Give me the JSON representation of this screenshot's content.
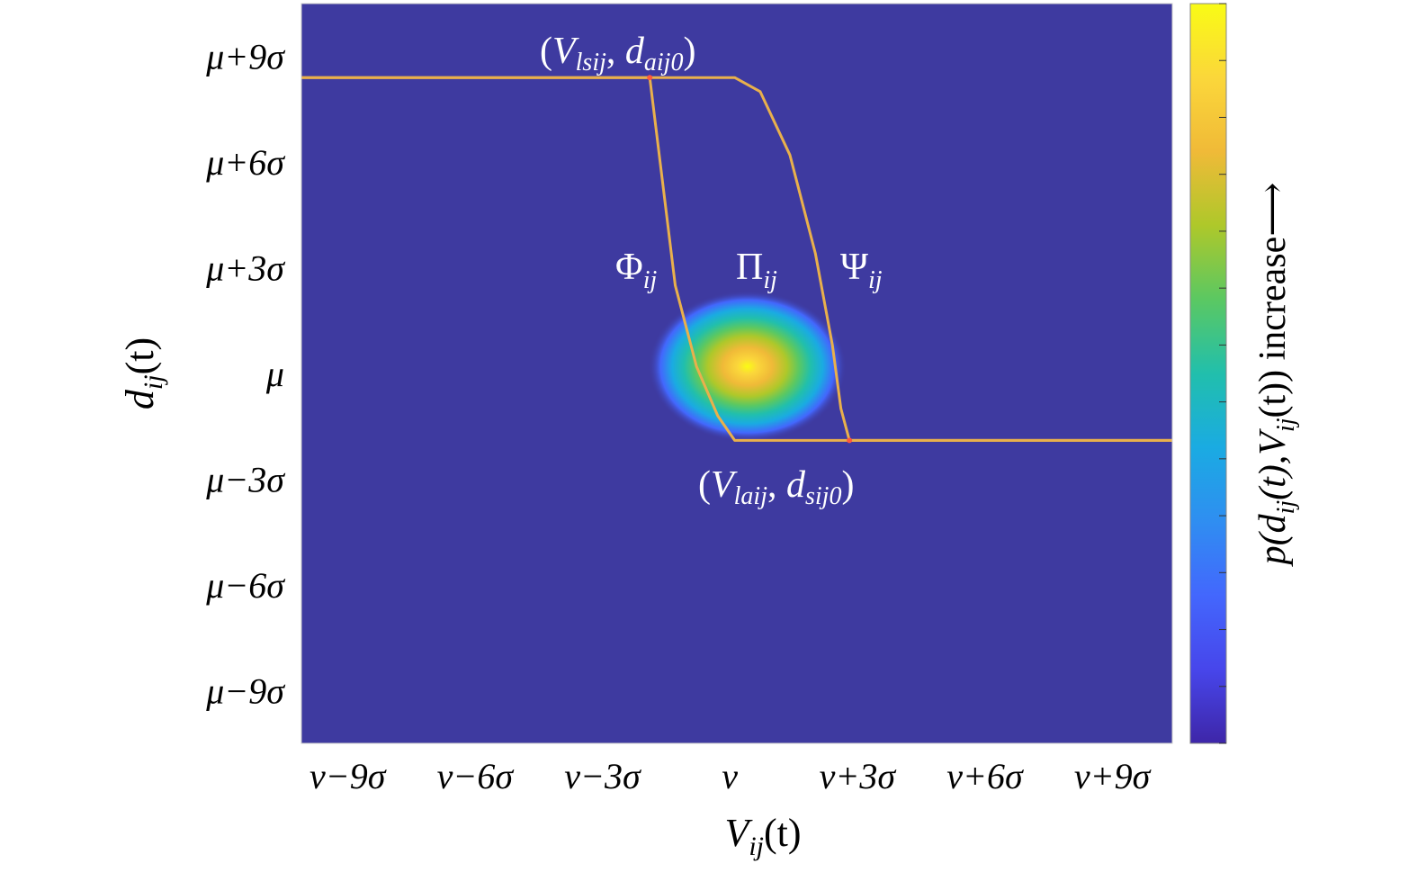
{
  "chart_data": {
    "type": "heatmap",
    "x_ticks": [
      "v−9σ",
      "v−6σ",
      "v−3σ",
      "v",
      "v+3σ",
      "v+6σ",
      "v+9σ"
    ],
    "y_ticks": [
      "μ+9σ",
      "μ+6σ",
      "μ+3σ",
      "μ",
      "μ−3σ",
      "μ−6σ",
      "μ−9σ"
    ],
    "x_tick_values": [
      -9,
      -6,
      -3,
      0,
      3,
      6,
      9
    ],
    "y_tick_values": [
      9,
      6,
      3,
      0,
      -3,
      -6,
      -9
    ],
    "xlim": [
      -10,
      10.5
    ],
    "ylim": [
      -10.5,
      10.5
    ],
    "xlabel": {
      "base": "V",
      "sub": "ij",
      "rest": "(t)"
    },
    "ylabel": {
      "base": "d",
      "sub": "ij",
      "rest": "(t)"
    },
    "colorbar_label": {
      "p": "p(d",
      "sub1": "ij",
      "mid": "(t),V",
      "sub2": "ij",
      "end": "(t)) increase⟶"
    },
    "density_peak": {
      "x": 0.5,
      "y": 0.2
    },
    "boundary_upper_y": 8.4,
    "boundary_lower_y": -1.9,
    "curves": [
      {
        "name": "Φij",
        "points": [
          [
            -10,
            8.4
          ],
          [
            -1.8,
            8.4
          ],
          [
            -1.2,
            2.5
          ],
          [
            -0.7,
            0.2
          ],
          [
            -0.2,
            -1.2
          ],
          [
            0.2,
            -1.9
          ],
          [
            10.5,
            -1.9
          ]
        ]
      },
      {
        "name": "Ψij",
        "points": [
          [
            -10,
            8.4
          ],
          [
            0.2,
            8.4
          ],
          [
            0.8,
            8.0
          ],
          [
            1.5,
            6.2
          ],
          [
            2.1,
            3.4
          ],
          [
            2.5,
            0.8
          ],
          [
            2.7,
            -1.0
          ],
          [
            2.9,
            -1.9
          ],
          [
            10.5,
            -1.9
          ]
        ]
      }
    ],
    "annotations": {
      "top_point": {
        "x": -1.8,
        "y": 8.4,
        "open": "(",
        "v": "V",
        "vsub": "lsij",
        "sep": ", ",
        "d": "d",
        "dsub": "aij0",
        "close": ")"
      },
      "bottom_point": {
        "x": 2.9,
        "y": -1.9,
        "open": "(",
        "v": "V",
        "vsub": "laij",
        "sep": ", ",
        "d": "d",
        "dsub": "sij0",
        "close": ")"
      },
      "phi": {
        "sym": "Φ",
        "sub": "ij"
      },
      "pi": {
        "sym": "Π",
        "sub": "ij"
      },
      "psi": {
        "sym": "Ψ",
        "sub": "ij"
      }
    },
    "colormap": [
      "#3e26a8",
      "#4746eb",
      "#4367fd",
      "#2f8ef1",
      "#1aabe2",
      "#21bfac",
      "#5bc862",
      "#aec82a",
      "#f0ba38",
      "#fbd73a",
      "#f9fb15"
    ],
    "background_color": "#3e3aa0",
    "curve_color": "#e9b04c"
  }
}
